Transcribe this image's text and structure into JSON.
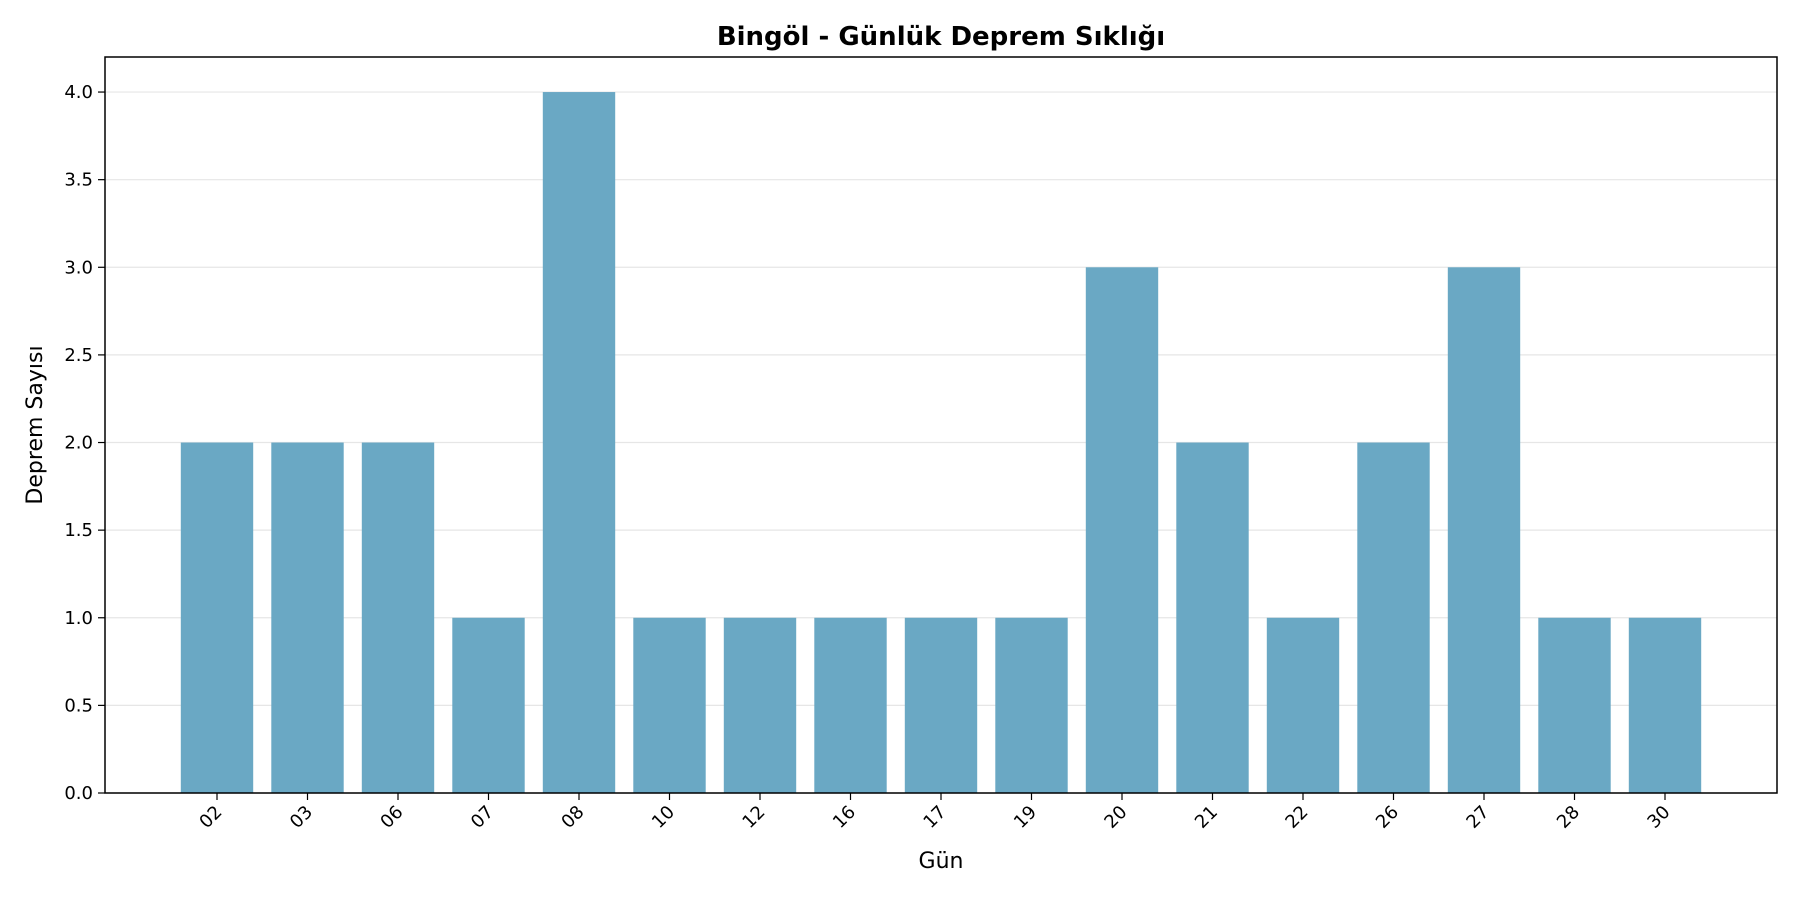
{
  "chart_data": {
    "type": "bar",
    "title": "Bingöl - Günlük Deprem Sıklığı",
    "xlabel": "Gün",
    "ylabel": "Deprem Sayısı",
    "categories": [
      "02",
      "03",
      "06",
      "07",
      "08",
      "10",
      "12",
      "16",
      "17",
      "19",
      "20",
      "21",
      "22",
      "26",
      "27",
      "28",
      "30"
    ],
    "values": [
      2,
      2,
      2,
      1,
      4,
      1,
      1,
      1,
      1,
      1,
      3,
      2,
      1,
      2,
      3,
      1,
      1
    ],
    "ylim": [
      0,
      4.2
    ],
    "yticks": [
      "0.0",
      "0.5",
      "1.0",
      "1.5",
      "2.0",
      "2.5",
      "3.0",
      "3.5",
      "4.0"
    ],
    "grid": "y",
    "legend": "none",
    "bar_color": "#6aa8c4",
    "grid_color": "#e6e6e6"
  }
}
